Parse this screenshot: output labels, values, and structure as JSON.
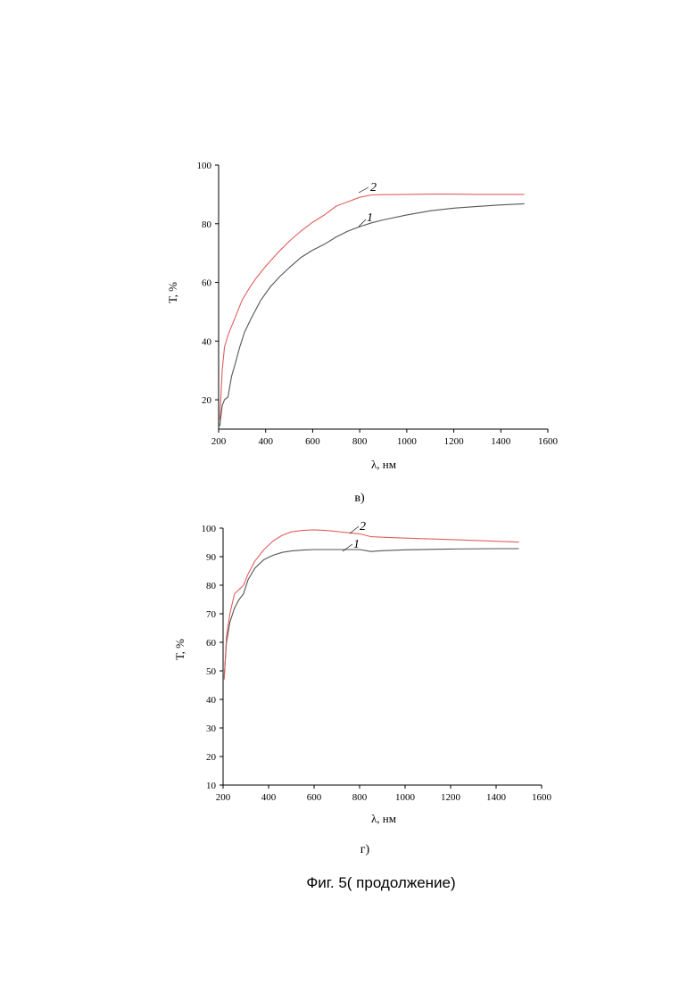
{
  "figure_caption": "Фиг. 5( продолжение)",
  "colors": {
    "series_1": "#555555",
    "series_2": "#e06060",
    "axis": "#000000"
  },
  "chart_data": [
    {
      "type": "line",
      "panel_label": "в)",
      "xlabel": "λ, нм",
      "ylabel": "Т, %",
      "xlim": [
        200,
        1600
      ],
      "ylim": [
        10,
        100
      ],
      "xticks": [
        200,
        400,
        600,
        800,
        1000,
        1200,
        1400,
        1600
      ],
      "yticks": [
        20,
        40,
        60,
        80,
        100
      ],
      "series": [
        {
          "name": "1",
          "x": [
            205,
            215,
            225,
            240,
            255,
            270,
            290,
            310,
            340,
            380,
            420,
            460,
            500,
            550,
            600,
            650,
            700,
            750,
            800,
            850,
            900,
            1000,
            1100,
            1200,
            1300,
            1400,
            1500
          ],
          "y": [
            11,
            18,
            20,
            21,
            28,
            32,
            38,
            43,
            48,
            54,
            58.5,
            62,
            65,
            68.5,
            71,
            73,
            75.5,
            77.5,
            79,
            80.3,
            81.3,
            83,
            84.4,
            85.3,
            85.9,
            86.4,
            86.8
          ]
        },
        {
          "name": "2",
          "x": [
            205,
            215,
            225,
            240,
            260,
            280,
            300,
            330,
            360,
            400,
            450,
            500,
            550,
            600,
            650,
            700,
            750,
            800,
            850,
            900,
            1000,
            1100,
            1200,
            1300,
            1400,
            1500
          ],
          "y": [
            13,
            30,
            38,
            42,
            46,
            50,
            54,
            58,
            61.5,
            65.5,
            70,
            74,
            77.5,
            80.5,
            83,
            86,
            87.5,
            89,
            89.8,
            89.9,
            90,
            90.1,
            90.1,
            90,
            90,
            90
          ]
        }
      ]
    },
    {
      "type": "line",
      "panel_label": "г)",
      "xlabel": "λ, нм",
      "ylabel": "Т, %",
      "xlim": [
        200,
        1600
      ],
      "ylim": [
        10,
        100
      ],
      "xticks": [
        200,
        400,
        600,
        800,
        1000,
        1200,
        1400,
        1600
      ],
      "yticks": [
        10,
        20,
        30,
        40,
        50,
        60,
        70,
        80,
        90,
        100
      ],
      "series": [
        {
          "name": "1",
          "x": [
            205,
            215,
            230,
            250,
            270,
            290,
            310,
            340,
            380,
            420,
            460,
            500,
            550,
            600,
            700,
            800,
            850,
            900,
            1000,
            1200,
            1400,
            1500
          ],
          "y": [
            48,
            60,
            67,
            72,
            75,
            77,
            82,
            86,
            89,
            90.5,
            91.5,
            92,
            92.3,
            92.5,
            92.5,
            92.5,
            91.8,
            92.1,
            92.4,
            92.7,
            92.8,
            92.8
          ]
        },
        {
          "name": "2",
          "x": [
            205,
            215,
            230,
            250,
            270,
            290,
            310,
            340,
            380,
            420,
            460,
            500,
            550,
            600,
            650,
            700,
            800,
            850,
            900,
            1000,
            1200,
            1400,
            1500
          ],
          "y": [
            47,
            62,
            70,
            77,
            78.5,
            80,
            84,
            88.5,
            92.5,
            95.5,
            97.5,
            98.7,
            99.2,
            99.4,
            99.2,
            98.8,
            98,
            97,
            96.8,
            96.5,
            96,
            95.4,
            95.1
          ]
        }
      ]
    }
  ]
}
